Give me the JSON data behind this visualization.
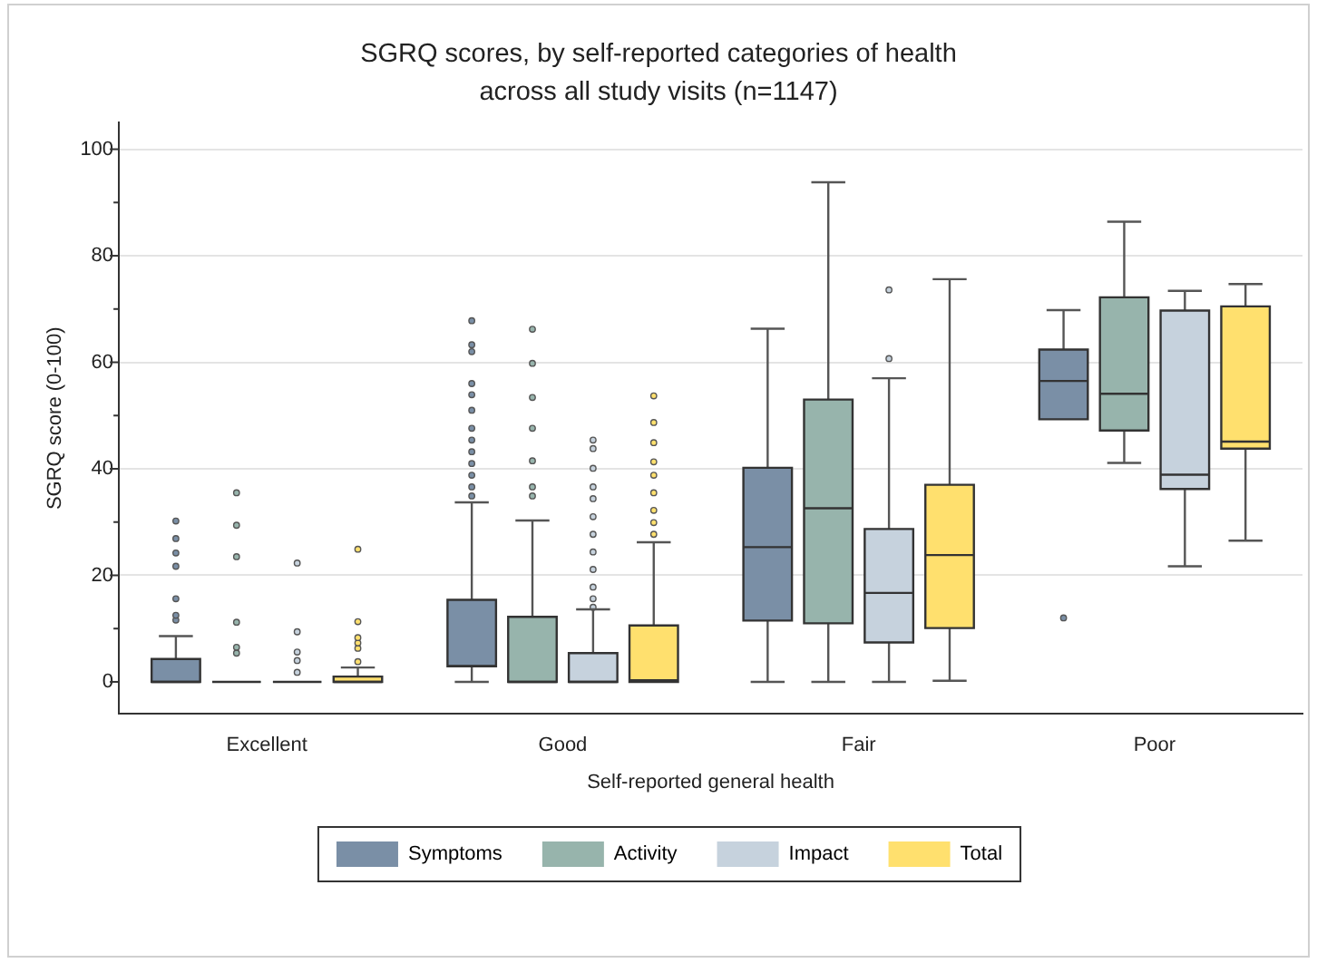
{
  "chart_data": {
    "type": "box",
    "title": "SGRQ scores, by self-reported categories of health across all study visits (n=1147)",
    "xlabel": "Self-reported general health",
    "ylabel": "SGRQ score (0-100)",
    "categories": [
      "Excellent",
      "Good",
      "Fair",
      "Poor"
    ],
    "ylim": [
      -6,
      105
    ],
    "yticks": [
      0,
      {
        "value": 10,
        "label": null
      },
      20,
      {
        "value": 30,
        "label": null
      },
      40,
      {
        "value": 50,
        "label": null
      },
      60,
      {
        "value": 70,
        "label": null
      },
      80,
      {
        "value": 90,
        "label": null
      },
      100
    ],
    "grid": "y",
    "legend": "bottom",
    "series": [
      {
        "name": "Symptoms",
        "color": "#7a8fa6",
        "boxes": [
          {
            "low": 0,
            "q1": 0,
            "median": 0,
            "q3": 4.3,
            "high": 8.6,
            "outliers": [
              11.6,
              12.5,
              15.6,
              21.7,
              24.2,
              26.9,
              30.2
            ]
          },
          {
            "low": 0,
            "q1": 2.9,
            "median": 3,
            "q3": 15.4,
            "high": 33.7,
            "outliers": [
              34.9,
              36.6,
              38.8,
              41,
              43.2,
              45.4,
              47.6,
              51,
              53.9,
              56,
              62,
              63.3,
              67.8
            ]
          },
          {
            "low": 0,
            "q1": 11.5,
            "median": 25.3,
            "q3": 40.2,
            "high": 66.3
          },
          {
            "low": 49.3,
            "q1": 49.3,
            "median": 56.5,
            "q3": 62.4,
            "high": 69.8,
            "outliers": [
              12
            ]
          }
        ]
      },
      {
        "name": "Activity",
        "color": "#97b4ac",
        "boxes": [
          {
            "low": 0,
            "q1": 0,
            "median": 0,
            "q3": 0,
            "high": 0,
            "outliers": [
              5.4,
              6.5,
              11.2,
              23.5,
              29.4,
              35.5
            ]
          },
          {
            "low": 0,
            "q1": 0,
            "median": 0,
            "q3": 12.2,
            "high": 30.3,
            "outliers": [
              34.9,
              36.6,
              41.5,
              47.6,
              53.4,
              59.8,
              66.2
            ]
          },
          {
            "low": 0,
            "q1": 11,
            "median": 32.6,
            "q3": 53,
            "high": 93.8
          },
          {
            "low": 41.1,
            "q1": 47.2,
            "median": 54.1,
            "q3": 72.2,
            "high": 86.4
          }
        ]
      },
      {
        "name": "Impact",
        "color": "#c6d2dd",
        "boxes": [
          {
            "low": 0,
            "q1": 0,
            "median": 0,
            "q3": 0,
            "high": 0,
            "outliers": [
              1.8,
              4,
              5.6,
              9.4,
              22.3
            ]
          },
          {
            "low": 0,
            "q1": 0,
            "median": 0,
            "q3": 5.4,
            "high": 13.6,
            "outliers": [
              14,
              15.6,
              17.8,
              21.1,
              24.4,
              27.7,
              31,
              34.4,
              36.6,
              40.1,
              43.8,
              45.4
            ]
          },
          {
            "low": 0,
            "q1": 7.4,
            "median": 16.7,
            "q3": 28.7,
            "high": 57,
            "outliers": [
              60.7,
              73.6
            ]
          },
          {
            "low": 21.7,
            "q1": 36.2,
            "median": 38.9,
            "q3": 69.7,
            "high": 73.4
          }
        ]
      },
      {
        "name": "Total",
        "color": "#ffe06e",
        "boxes": [
          {
            "low": 0,
            "q1": 0,
            "median": 0,
            "q3": 1,
            "high": 2.7,
            "outliers": [
              3.8,
              6.3,
              7.3,
              8.3,
              11.3,
              24.9
            ]
          },
          {
            "low": 0,
            "q1": 0,
            "median": 0.3,
            "q3": 10.6,
            "high": 26.2,
            "outliers": [
              27.7,
              29.9,
              32.2,
              35.5,
              38.8,
              41.3,
              44.9,
              48.7,
              53.7
            ]
          },
          {
            "low": 0.2,
            "q1": 10.1,
            "median": 23.8,
            "q3": 37,
            "high": 75.6
          },
          {
            "low": 26.5,
            "q1": 43.8,
            "median": 45.1,
            "q3": 70.5,
            "high": 74.7
          }
        ]
      }
    ]
  }
}
